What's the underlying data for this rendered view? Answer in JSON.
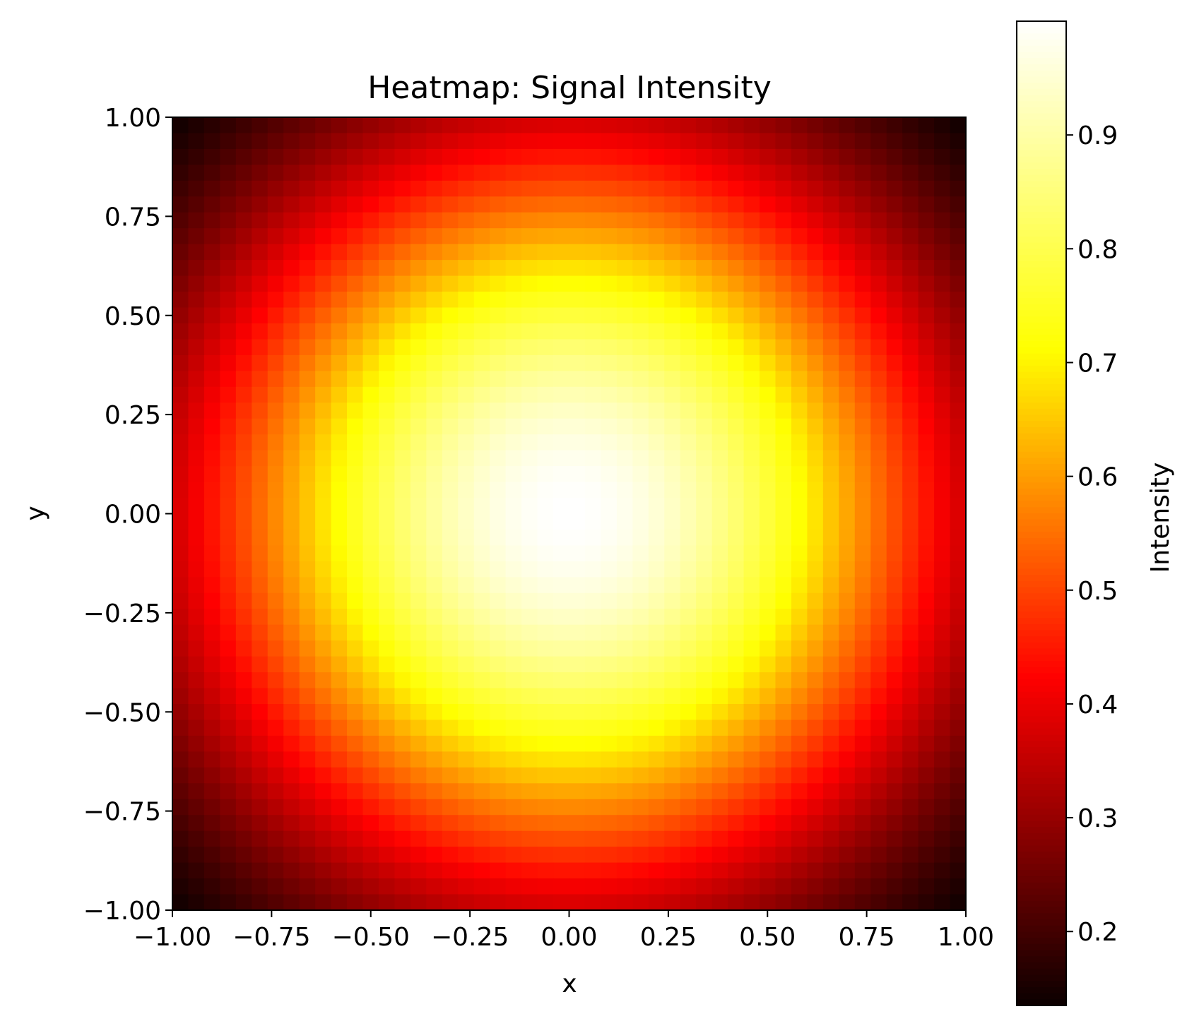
{
  "chart_data": {
    "type": "heatmap",
    "title": "Heatmap: Signal Intensity",
    "xlabel": "x",
    "ylabel": "y",
    "xlim": [
      -1.0,
      1.0
    ],
    "ylim": [
      -1.0,
      1.0
    ],
    "grid_size": [
      50,
      50
    ],
    "x_ticks": [
      {
        "value": -1.0,
        "label": "−1.00"
      },
      {
        "value": -0.75,
        "label": "−0.75"
      },
      {
        "value": -0.5,
        "label": "−0.50"
      },
      {
        "value": -0.25,
        "label": "−0.25"
      },
      {
        "value": 0.0,
        "label": "0.00"
      },
      {
        "value": 0.25,
        "label": "0.25"
      },
      {
        "value": 0.5,
        "label": "0.50"
      },
      {
        "value": 0.75,
        "label": "0.75"
      },
      {
        "value": 1.0,
        "label": "1.00"
      }
    ],
    "y_ticks": [
      {
        "value": 1.0,
        "label": "1.00"
      },
      {
        "value": 0.75,
        "label": "0.75"
      },
      {
        "value": 0.5,
        "label": "0.50"
      },
      {
        "value": 0.25,
        "label": "0.25"
      },
      {
        "value": 0.0,
        "label": "0.00"
      },
      {
        "value": -0.25,
        "label": "−0.25"
      },
      {
        "value": -0.5,
        "label": "−0.50"
      },
      {
        "value": -0.75,
        "label": "−0.75"
      },
      {
        "value": -1.0,
        "label": "−1.00"
      }
    ],
    "colormap": "hot",
    "colormap_stops": [
      "#0b0000",
      "#ff0000",
      "#ffff00",
      "#ffffff"
    ],
    "intensity_function": "exp(-(x^2 + y^2))",
    "value_range": [
      0.135,
      1.0
    ],
    "colorbar": {
      "label": "Intensity",
      "ticks": [
        {
          "value": 0.2,
          "label": "0.2"
        },
        {
          "value": 0.3,
          "label": "0.3"
        },
        {
          "value": 0.4,
          "label": "0.4"
        },
        {
          "value": 0.5,
          "label": "0.5"
        },
        {
          "value": 0.6,
          "label": "0.6"
        },
        {
          "value": 0.7,
          "label": "0.7"
        },
        {
          "value": 0.8,
          "label": "0.8"
        },
        {
          "value": 0.9,
          "label": "0.9"
        }
      ]
    },
    "grid": false
  }
}
